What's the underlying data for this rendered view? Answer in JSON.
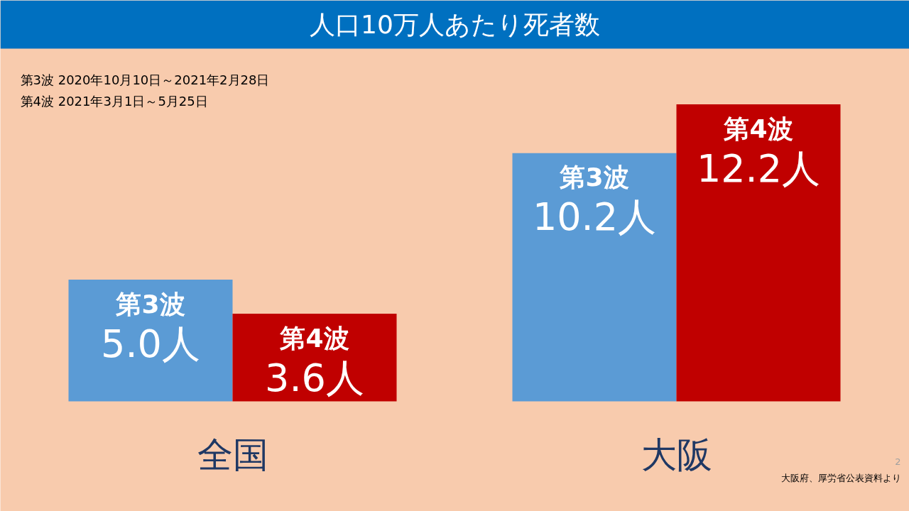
{
  "chart_data": {
    "type": "bar",
    "title": "人口10万人あたり死者数",
    "categories": [
      "全国",
      "大阪"
    ],
    "series": [
      {
        "name": "第3波",
        "color": "#5b9bd5",
        "values": [
          5.0,
          10.2
        ],
        "value_labels": [
          "5.0人",
          "10.2人"
        ]
      },
      {
        "name": "第4波",
        "color": "#c00000",
        "values": [
          3.6,
          12.2
        ],
        "value_labels": [
          "3.6人",
          "12.2人"
        ]
      }
    ],
    "annotations": [
      "第3波  2020年10月10日～2021年2月28日",
      "第4波  2021年3月1日～5月25日",
      "2",
      "大阪府、厚労省公表資料より"
    ]
  }
}
